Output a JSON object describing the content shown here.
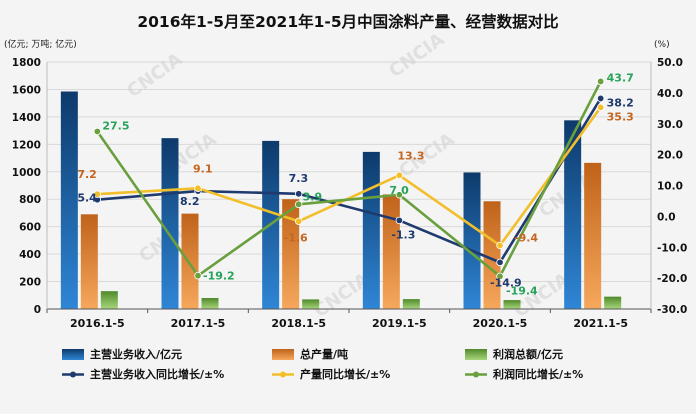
{
  "chart_data": {
    "type": "bar+line",
    "title": "2016年1-5月至2021年1-5月中国涂料产量、经营数据对比",
    "left_axis_label": "(亿元; 万吨; 亿元)",
    "right_axis_label": "(%)",
    "categories": [
      "2016.1-5",
      "2017.1-5",
      "2018.1-5",
      "2019.1-5",
      "2020.1-5",
      "2021.1-5"
    ],
    "left_ylim": [
      0,
      1800
    ],
    "left_ticks": [
      0,
      200,
      400,
      600,
      800,
      1000,
      1200,
      1400,
      1600,
      1800
    ],
    "right_ylim": [
      -30,
      50
    ],
    "right_ticks": [
      -30,
      -20,
      -10,
      0,
      10,
      20,
      30,
      40,
      50
    ],
    "right_tick_labels": [
      "-30.0",
      "-20.0",
      "-10.0",
      "0.0",
      "10.0",
      "20.0",
      "30.0",
      "40.0",
      "50.0"
    ],
    "bars": [
      {
        "name": "主营业务收入/亿元",
        "color": "#1f6fb2",
        "values": [
          1585,
          1245,
          1225,
          1145,
          995,
          1375
        ]
      },
      {
        "name": "总产量/吨",
        "color": "#ef8a35",
        "values": [
          690,
          695,
          800,
          835,
          785,
          1065
        ]
      },
      {
        "name": "利润总额/亿元",
        "color": "#70ad47",
        "values": [
          130,
          80,
          70,
          72,
          65,
          90
        ]
      }
    ],
    "lines": [
      {
        "name": "主营业务收入同比增长/±%",
        "color": "#1f3a6e",
        "values": [
          5.4,
          8.2,
          7.3,
          -1.3,
          -14.9,
          38.2
        ],
        "labels": [
          "5.4",
          "8.2",
          "7.3",
          "-1.3",
          "-14.9",
          "38.2"
        ],
        "label_color": "#1f3a6e"
      },
      {
        "name": "产量同比增长/±%",
        "color": "#f2bf2a",
        "values": [
          7.2,
          9.1,
          -1.6,
          13.3,
          -9.4,
          35.3
        ],
        "labels": [
          "7.2",
          "9.1",
          "-1.6",
          "13.3",
          "-9.4",
          "35.3"
        ],
        "label_color": "#c5661f"
      },
      {
        "name": "利润同比增长/±%",
        "color": "#6a9f3e",
        "values": [
          27.5,
          -19.2,
          3.9,
          7.0,
          -19.4,
          43.7
        ],
        "labels": [
          "27.5",
          "-19.2",
          "3.9",
          "7.0",
          "-19.4",
          "43.7"
        ],
        "label_color": "#27a35a"
      }
    ],
    "watermark": "CNCIA"
  }
}
